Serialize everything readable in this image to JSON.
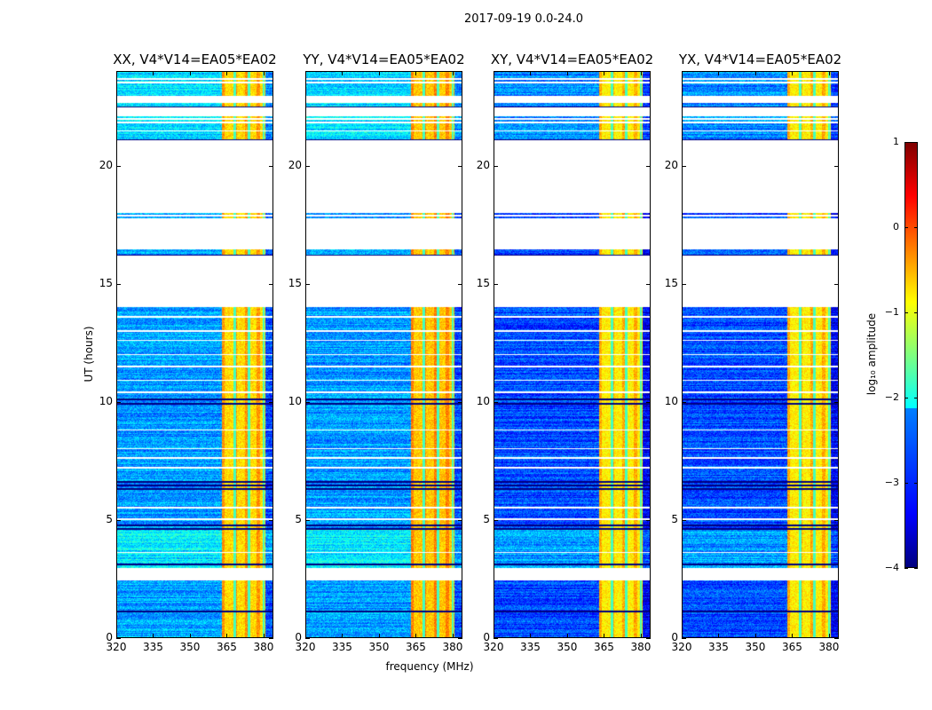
{
  "chart_data": {
    "type": "heatmap",
    "title": "2017-09-19 0.0-24.0",
    "xlabel": "frequency (MHz)",
    "ylabel": "UT (hours)",
    "xlim": [
      320,
      384
    ],
    "ylim": [
      0,
      24
    ],
    "xticks": [
      320,
      335,
      350,
      365,
      380
    ],
    "yticks": [
      0,
      5,
      10,
      15,
      20
    ],
    "colormap": "jet",
    "colorbar": {
      "label": "log₁₀ amplitude",
      "range": [
        -4,
        1
      ],
      "ticks": [
        1,
        0,
        -1,
        -2,
        -3,
        -4
      ]
    },
    "panels": [
      {
        "title": "XX, V4*V14=EA05*EA02",
        "background_log_amp": -2.6,
        "rfi_log_amp": -0.7
      },
      {
        "title": "YY, V4*V14=EA05*EA02",
        "background_log_amp": -2.6,
        "rfi_log_amp": -0.6
      },
      {
        "title": "XY, V4*V14=EA05*EA02",
        "background_log_amp": -3.0,
        "rfi_log_amp": -0.8
      },
      {
        "title": "YX, V4*V14=EA05*EA02",
        "background_log_amp": -3.0,
        "rfi_log_amp": -0.8
      }
    ],
    "rfi_band_mhz": [
      363,
      381
    ],
    "rfi_gap_channels_mhz": [
      368.5,
      374.3,
      380.3
    ],
    "data_segments_hours": [
      [
        0,
        2.4
      ],
      [
        2.95,
        4.6
      ],
      [
        4.6,
        5.1
      ],
      [
        5.1,
        6.7
      ],
      [
        6.7,
        14.0
      ],
      [
        16.2,
        16.45
      ],
      [
        17.8,
        18.0
      ],
      [
        21.1,
        21.8
      ],
      [
        21.9,
        22.1
      ],
      [
        22.5,
        22.7
      ],
      [
        23.0,
        23.5
      ],
      [
        23.6,
        24.0
      ]
    ],
    "flagged_lines_hours": [
      3.6,
      5.0,
      5.5,
      7.2,
      7.6,
      8.0,
      8.8,
      10.4,
      10.9,
      11.5,
      12.0,
      12.6,
      13.0,
      13.6,
      17.9,
      21.5,
      22.0,
      23.7
    ],
    "dark_lines_hours": [
      1.1,
      3.1,
      4.6,
      4.75,
      6.3,
      6.45,
      6.6,
      9.9,
      10.1,
      14.05,
      14.1,
      16.2,
      21.1,
      22.5
    ]
  }
}
